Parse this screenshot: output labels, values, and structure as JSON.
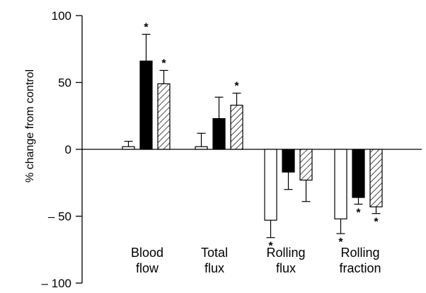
{
  "chart_data": {
    "type": "bar",
    "ylabel": "% change from control",
    "ylim": [
      -100,
      100
    ],
    "yticks": [
      100,
      50,
      0,
      -50,
      -100
    ],
    "ytick_labels": [
      "100",
      "50",
      "0",
      "– 50",
      "– 100"
    ],
    "grid": false,
    "legend": "none",
    "categories": [
      {
        "lines": [
          "Blood",
          "flow"
        ]
      },
      {
        "lines": [
          "Total",
          "flux"
        ]
      },
      {
        "lines": [
          "Rolling",
          "flux"
        ]
      },
      {
        "lines": [
          "Rolling",
          "fraction"
        ]
      }
    ],
    "series": [
      {
        "fill": "open",
        "color": "#ffffff",
        "values": [
          2,
          2,
          -53,
          -52
        ],
        "errors": [
          4,
          10,
          13,
          11
        ],
        "significant": [
          false,
          false,
          true,
          true
        ]
      },
      {
        "fill": "solid",
        "color": "#000000",
        "values": [
          66,
          23,
          -17,
          -36
        ],
        "errors": [
          20,
          16,
          13,
          5
        ],
        "significant": [
          true,
          false,
          false,
          true
        ]
      },
      {
        "fill": "hatched",
        "color": "#ffffff",
        "values": [
          49,
          33,
          -23,
          -43
        ],
        "errors": [
          10,
          9,
          16,
          5
        ],
        "significant": [
          true,
          true,
          false,
          true
        ]
      }
    ],
    "significance_marker": "*"
  }
}
